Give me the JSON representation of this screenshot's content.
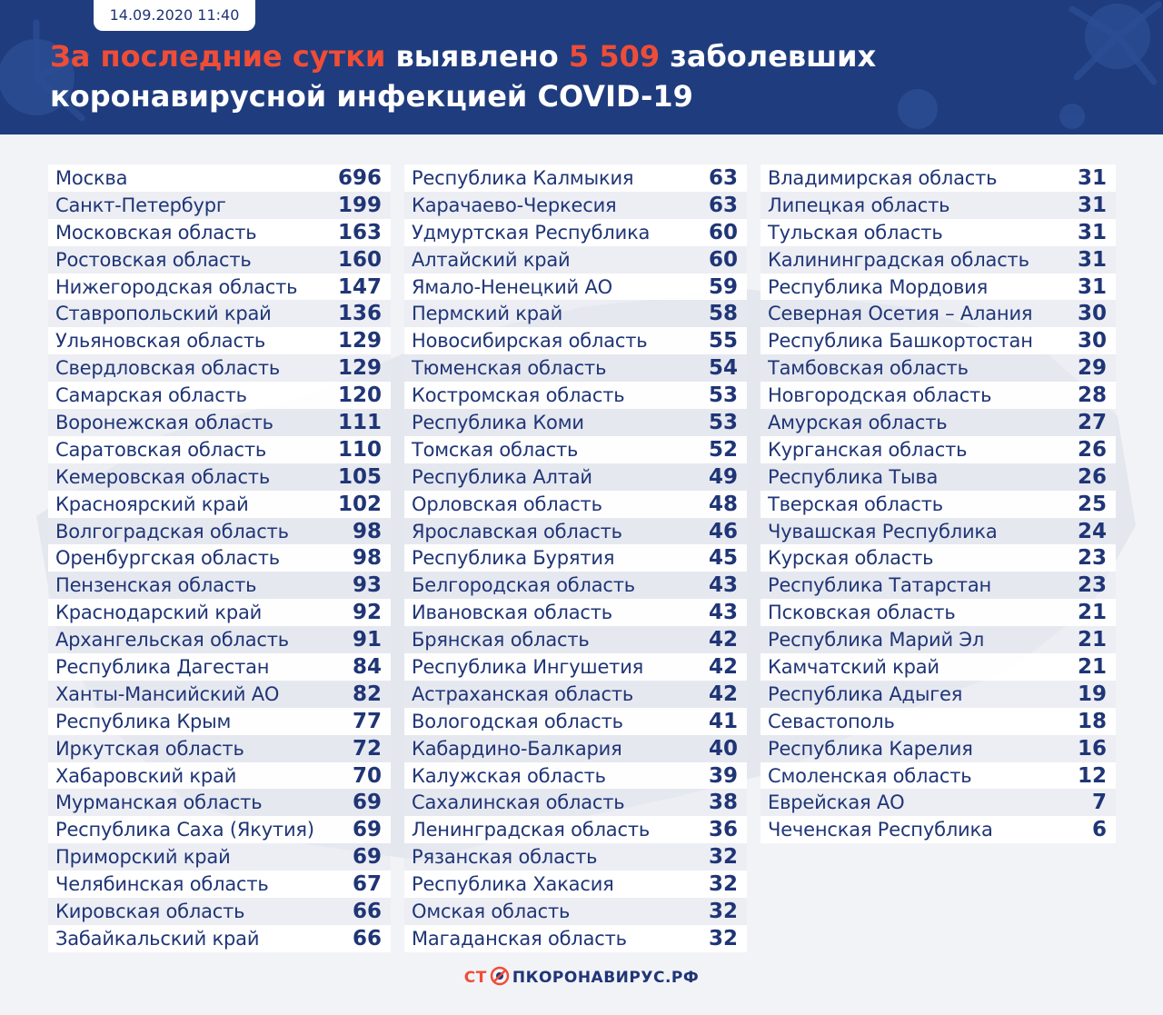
{
  "header": {
    "date": "14.09.2020 11:40",
    "headline_accent": "За последние сутки",
    "headline_mid": " выявлено ",
    "headline_count": "5 509",
    "headline_tail": " заболевших",
    "headline_line2": "коронавирусной инфекцией COVID-19"
  },
  "columns": [
    [
      {
        "region": "Москва",
        "count": "696"
      },
      {
        "region": "Санкт-Петербург",
        "count": "199"
      },
      {
        "region": "Московская область",
        "count": "163"
      },
      {
        "region": "Ростовская область",
        "count": "160"
      },
      {
        "region": "Нижегородская область",
        "count": "147"
      },
      {
        "region": "Ставропольский край",
        "count": "136"
      },
      {
        "region": "Ульяновская область",
        "count": "129"
      },
      {
        "region": "Свердловская область",
        "count": "129"
      },
      {
        "region": "Самарская область",
        "count": "120"
      },
      {
        "region": "Воронежская область",
        "count": "111"
      },
      {
        "region": "Саратовская область",
        "count": "110"
      },
      {
        "region": "Кемеровская область",
        "count": "105"
      },
      {
        "region": "Красноярский край",
        "count": "102"
      },
      {
        "region": "Волгоградская область",
        "count": "98"
      },
      {
        "region": "Оренбургская область",
        "count": "98"
      },
      {
        "region": "Пензенская область",
        "count": "93"
      },
      {
        "region": "Краснодарский край",
        "count": "92"
      },
      {
        "region": "Архангельская область",
        "count": "91"
      },
      {
        "region": "Республика Дагестан",
        "count": "84"
      },
      {
        "region": "Ханты-Мансийский АО",
        "count": "82"
      },
      {
        "region": "Республика Крым",
        "count": "77"
      },
      {
        "region": "Иркутская область",
        "count": "72"
      },
      {
        "region": "Хабаровский край",
        "count": "70"
      },
      {
        "region": "Мурманская область",
        "count": "69"
      },
      {
        "region": "Республика Саха (Якутия)",
        "count": "69"
      },
      {
        "region": "Приморский край",
        "count": "69"
      },
      {
        "region": "Челябинская область",
        "count": "67"
      },
      {
        "region": "Кировская область",
        "count": "66"
      },
      {
        "region": "Забайкальский край",
        "count": "66"
      }
    ],
    [
      {
        "region": "Республика Калмыкия",
        "count": "63"
      },
      {
        "region": "Карачаево-Черкесия",
        "count": "63"
      },
      {
        "region": "Удмуртская Республика",
        "count": "60"
      },
      {
        "region": "Алтайский край",
        "count": "60"
      },
      {
        "region": "Ямало-Ненецкий АО",
        "count": "59"
      },
      {
        "region": "Пермский край",
        "count": "58"
      },
      {
        "region": "Новосибирская область",
        "count": "55"
      },
      {
        "region": "Тюменская область",
        "count": "54"
      },
      {
        "region": "Костромская область",
        "count": "53"
      },
      {
        "region": "Республика Коми",
        "count": "53"
      },
      {
        "region": "Томская область",
        "count": "52"
      },
      {
        "region": "Республика  Алтай",
        "count": "49"
      },
      {
        "region": "Орловская область",
        "count": "48"
      },
      {
        "region": "Ярославская область",
        "count": "46"
      },
      {
        "region": "Республика Бурятия",
        "count": "45"
      },
      {
        "region": "Белгородская область",
        "count": "43"
      },
      {
        "region": "Ивановская область",
        "count": "43"
      },
      {
        "region": "Брянская область",
        "count": "42"
      },
      {
        "region": "Республика Ингушетия",
        "count": "42"
      },
      {
        "region": "Астраханская область",
        "count": "42"
      },
      {
        "region": "Вологодская область",
        "count": "41"
      },
      {
        "region": "Кабардино-Балкария",
        "count": "40"
      },
      {
        "region": "Калужская область",
        "count": "39"
      },
      {
        "region": "Сахалинская область",
        "count": "38"
      },
      {
        "region": "Ленинградская область",
        "count": "36"
      },
      {
        "region": "Рязанская область",
        "count": "32"
      },
      {
        "region": "Республика Хакасия",
        "count": "32"
      },
      {
        "region": "Омская область",
        "count": "32"
      },
      {
        "region": "Магаданская область",
        "count": "32"
      }
    ],
    [
      {
        "region": "Владимирская область",
        "count": "31"
      },
      {
        "region": "Липецкая область",
        "count": "31"
      },
      {
        "region": "Тульская область",
        "count": "31"
      },
      {
        "region": "Калининградская область",
        "count": "31"
      },
      {
        "region": "Республика Мордовия",
        "count": "31"
      },
      {
        "region": "Северная Осетия – Алания",
        "count": "30"
      },
      {
        "region": "Республика Башкортостан",
        "count": "30"
      },
      {
        "region": "Тамбовская область",
        "count": "29"
      },
      {
        "region": "Новгородская область",
        "count": "28"
      },
      {
        "region": "Амурская область",
        "count": "27"
      },
      {
        "region": "Курганская область",
        "count": "26"
      },
      {
        "region": "Республика Тыва",
        "count": "26"
      },
      {
        "region": "Тверская область",
        "count": "25"
      },
      {
        "region": "Чувашская Республика",
        "count": "24"
      },
      {
        "region": "Курская область",
        "count": "23"
      },
      {
        "region": "Республика Татарстан",
        "count": "23"
      },
      {
        "region": "Псковская область",
        "count": "21"
      },
      {
        "region": "Республика Марий Эл",
        "count": "21"
      },
      {
        "region": "Камчатский край",
        "count": "21"
      },
      {
        "region": "Республика Адыгея",
        "count": "19"
      },
      {
        "region": "Севастополь",
        "count": "18"
      },
      {
        "region": "Республика Карелия",
        "count": "16"
      },
      {
        "region": "Смоленская область",
        "count": "12"
      },
      {
        "region": "Еврейская АО",
        "count": "7"
      },
      {
        "region": "Чеченская Республика",
        "count": "6"
      }
    ]
  ],
  "footer": {
    "logo_part1": "СТ",
    "logo_part2": "ПКОРОНАВИРУС.РФ",
    "logo_icon": "virus-stop-icon"
  },
  "colors": {
    "header_bg": "#1f3c7e",
    "accent": "#ef4d37",
    "text": "#1f3576",
    "page_bg": "#f2f3f7"
  }
}
